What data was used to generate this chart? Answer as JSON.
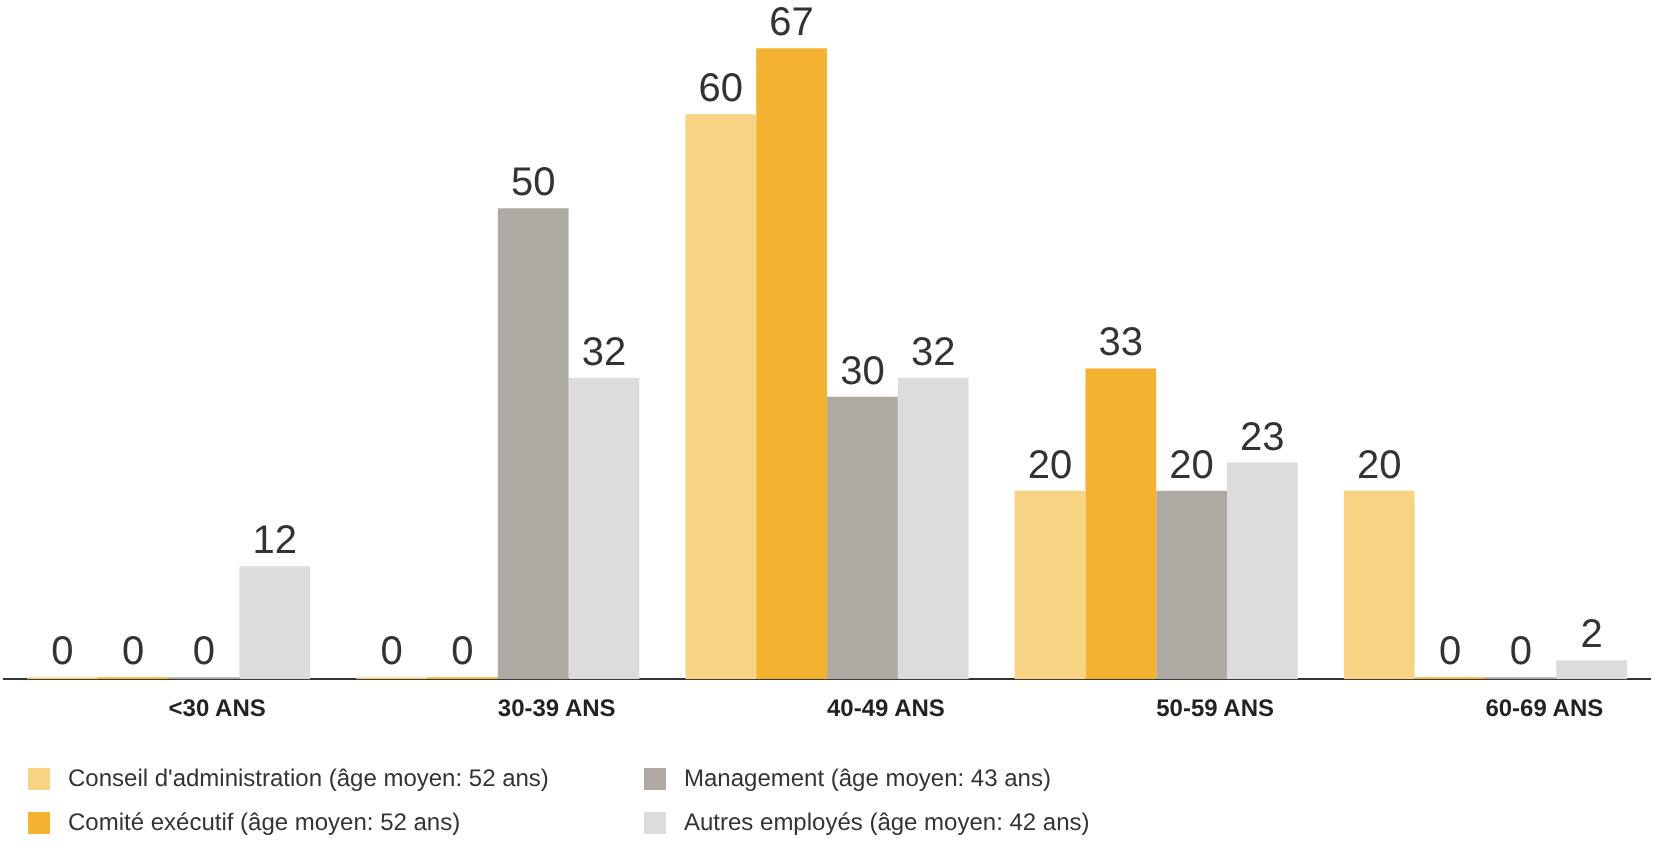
{
  "chart_data": {
    "type": "bar",
    "categories": [
      "<30 ANS",
      "30-39 ANS",
      "40-49 ANS",
      "50-59 ANS",
      "60-69 ANS"
    ],
    "series": [
      {
        "name": "Conseil d'administration (âge moyen: 52 ans)",
        "color": "#f9d384",
        "values": [
          0,
          0,
          60,
          20,
          20
        ]
      },
      {
        "name": "Comité exécutif (âge moyen: 52 ans)",
        "color": "#f4b231",
        "values": [
          0,
          0,
          67,
          33,
          0
        ]
      },
      {
        "name": "Management (âge moyen: 43 ans)",
        "color": "#aea9a3",
        "values": [
          0,
          50,
          30,
          20,
          0
        ]
      },
      {
        "name": "Autres employés (âge moyen: 42 ans)",
        "color": "#dcdcdc",
        "values": [
          12,
          32,
          32,
          23,
          2
        ]
      }
    ],
    "data_labels": true,
    "grid": false,
    "legend": "bottom"
  }
}
